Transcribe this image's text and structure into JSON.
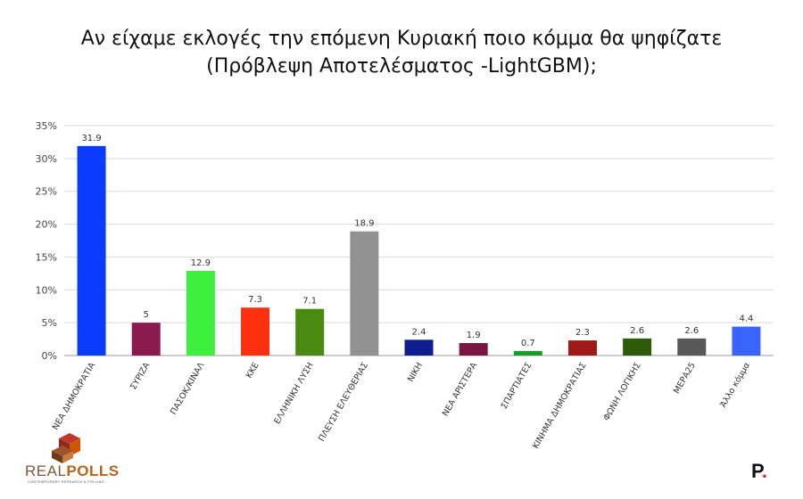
{
  "chart_data": {
    "type": "bar",
    "title_lines": [
      "Αν είχαμε εκλογές την επόμενη Κυριακή ποιο κόμμα θα ψηφίζατε",
      "(Πρόβλεψη Αποτελέσματος -LightGBM);"
    ],
    "categories": [
      "ΝΕΑ ΔΗΜΟΚΡΑΤΙΑ",
      "ΣΥΡΙΖΑ",
      "ΠΑΣΟΚ/ΚΙΝΑΛ",
      "ΚΚΕ",
      "ΕΛΛΗΝΙΚΗ ΛΥΣΗ",
      "ΠΛΕΥΣΗ ΕΛΕΥΘΕΡΙΑΣ",
      "ΝΙΚΗ",
      "ΝΕΑ ΑΡΙΣΤΕΡΑ",
      "ΣΠΑΡΤΙΑΤΕΣ",
      "ΚΙΝΗΜΑ ΔΗΜΟΚΡΑΤΙΑΣ",
      "ΦΩΝΗ ΛΟΓΙΚΗΣ",
      "ΜΕΡΑ25",
      "Άλλο κόμμα"
    ],
    "values": [
      31.9,
      5,
      12.9,
      7.3,
      7.1,
      18.9,
      2.4,
      1.9,
      0.7,
      2.3,
      2.6,
      2.6,
      4.4
    ],
    "value_labels": [
      "31.9",
      "5",
      "12.9",
      "7.3",
      "7.1",
      "18.9",
      "2.4",
      "1.9",
      "0.7",
      "2.3",
      "2.6",
      "2.6",
      "4.4"
    ],
    "colors": [
      "#0a3cff",
      "#8b1a4e",
      "#3cf03c",
      "#ff3010",
      "#4a8a10",
      "#929292",
      "#0e1e90",
      "#7a1640",
      "#1a9a2a",
      "#a01818",
      "#2e5a0a",
      "#585858",
      "#3a64ff"
    ],
    "ylim": [
      0,
      35
    ],
    "yticks": [
      0,
      5,
      10,
      15,
      20,
      25,
      30,
      35
    ],
    "ytick_labels": [
      "0%",
      "5%",
      "10%",
      "15%",
      "20%",
      "25%",
      "30%",
      "35%"
    ],
    "grid": true,
    "legend": "none"
  },
  "logo": {
    "brand_a": "REAL",
    "brand_b": "POLLS",
    "tagline": "CONTEMPORARY RESEARCH & POLLING"
  },
  "publisher_mark": {
    "letter": "P",
    "dot": "."
  }
}
